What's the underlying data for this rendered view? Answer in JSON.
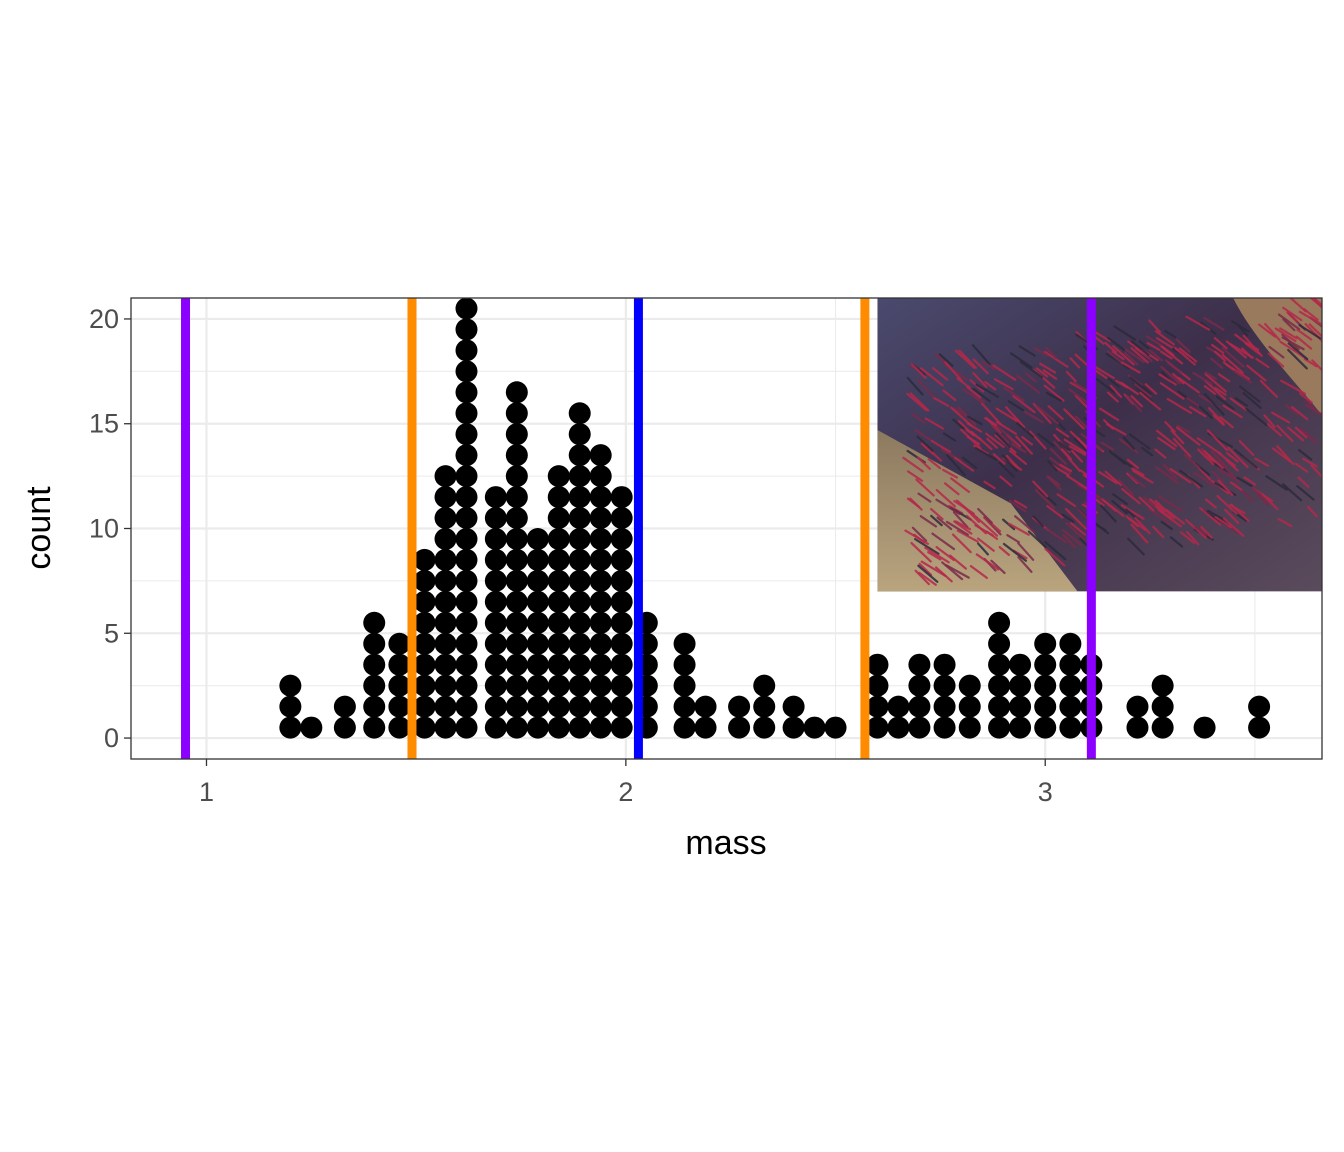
{
  "chart_data": {
    "type": "dotplot",
    "xlabel": "mass",
    "ylabel": "count",
    "xlim": [
      0.82,
      3.66
    ],
    "ylim": [
      -1,
      21
    ],
    "x_ticks": [
      1,
      2,
      3
    ],
    "y_ticks": [
      0,
      5,
      10,
      15,
      20
    ],
    "x_tick_labels": [
      "1",
      "2",
      "3"
    ],
    "y_tick_labels": [
      "0",
      "5",
      "10",
      "15",
      "20"
    ],
    "grid": true,
    "theme": "bw",
    "dot_color": "#000000",
    "stacks": [
      {
        "x": 1.2,
        "count": 3
      },
      {
        "x": 1.25,
        "count": 1
      },
      {
        "x": 1.33,
        "count": 2
      },
      {
        "x": 1.4,
        "count": 6
      },
      {
        "x": 1.46,
        "count": 5
      },
      {
        "x": 1.52,
        "count": 9
      },
      {
        "x": 1.57,
        "count": 13
      },
      {
        "x": 1.62,
        "count": 21
      },
      {
        "x": 1.69,
        "count": 12
      },
      {
        "x": 1.74,
        "count": 17
      },
      {
        "x": 1.79,
        "count": 10
      },
      {
        "x": 1.84,
        "count": 13
      },
      {
        "x": 1.89,
        "count": 16
      },
      {
        "x": 1.94,
        "count": 14
      },
      {
        "x": 1.99,
        "count": 12
      },
      {
        "x": 2.05,
        "count": 6
      },
      {
        "x": 2.14,
        "count": 5
      },
      {
        "x": 2.19,
        "count": 2
      },
      {
        "x": 2.27,
        "count": 2
      },
      {
        "x": 2.33,
        "count": 3
      },
      {
        "x": 2.4,
        "count": 2
      },
      {
        "x": 2.45,
        "count": 1
      },
      {
        "x": 2.5,
        "count": 1
      },
      {
        "x": 2.6,
        "count": 4
      },
      {
        "x": 2.65,
        "count": 2
      },
      {
        "x": 2.7,
        "count": 4
      },
      {
        "x": 2.76,
        "count": 4
      },
      {
        "x": 2.82,
        "count": 3
      },
      {
        "x": 2.89,
        "count": 6
      },
      {
        "x": 2.94,
        "count": 4
      },
      {
        "x": 3.0,
        "count": 5
      },
      {
        "x": 3.06,
        "count": 5
      },
      {
        "x": 3.11,
        "count": 4
      },
      {
        "x": 3.22,
        "count": 2
      },
      {
        "x": 3.28,
        "count": 3
      },
      {
        "x": 3.38,
        "count": 1
      },
      {
        "x": 3.51,
        "count": 2
      }
    ],
    "reference_lines": [
      {
        "x": 0.95,
        "color": "#8B00FF"
      },
      {
        "x": 1.49,
        "color": "#FF8C00"
      },
      {
        "x": 2.03,
        "color": "#0000FF"
      },
      {
        "x": 2.57,
        "color": "#FF8C00"
      },
      {
        "x": 3.11,
        "color": "#8B00FF"
      }
    ],
    "inset_image": {
      "description_icon": "salmon-photo-icon",
      "x_range": [
        2.6,
        3.66
      ],
      "y_range": [
        7,
        21
      ]
    }
  }
}
